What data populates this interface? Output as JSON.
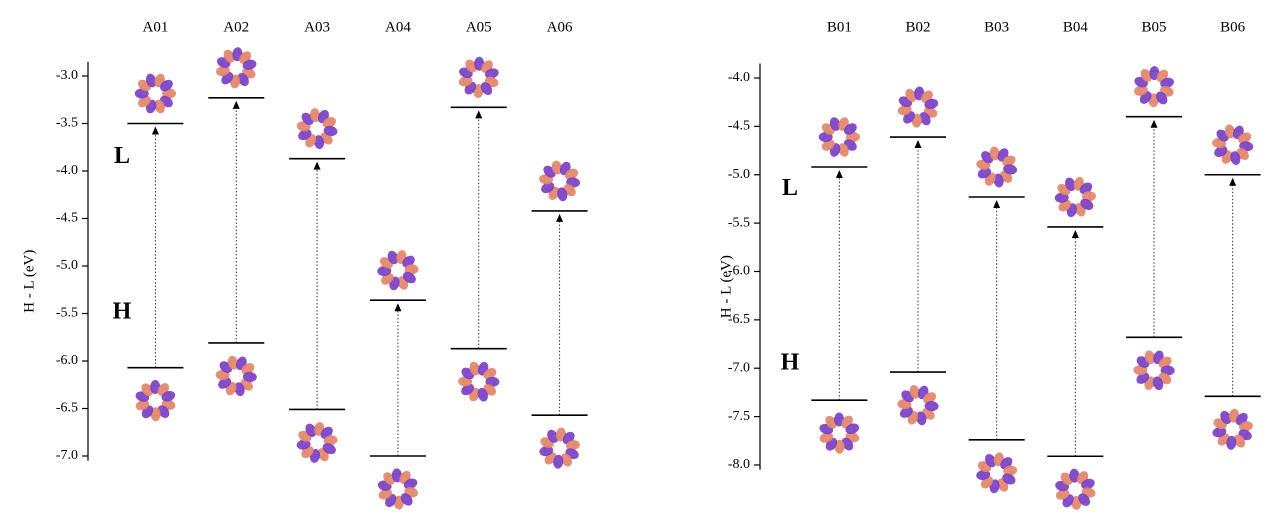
{
  "chart_data": [
    {
      "type": "level",
      "ylabel": "H - L (eV)",
      "categories": [
        "A01",
        "A02",
        "A03",
        "A04",
        "A05",
        "A06"
      ],
      "series": [
        {
          "color": "#000000",
          "values": [
            -3.5,
            -3.23,
            -3.87,
            -5.36,
            -3.33,
            -4.42
          ]
        },
        {
          "color": "#000000",
          "values": [
            -6.07,
            -5.81,
            -6.51,
            -7.0,
            -5.87,
            -6.57
          ]
        }
      ],
      "annotations": [
        "L",
        "H"
      ],
      "ylim": [
        -7.05,
        -2.85
      ],
      "yticks": [
        {
          "value": -3,
          "label": "-3.0"
        },
        -3.5,
        {
          "value": -4,
          "label": "-4.0"
        },
        -4.5,
        {
          "value": -5,
          "label": "-5.0"
        },
        -5.5,
        {
          "value": -6,
          "label": "-6.0"
        },
        -6.5,
        {
          "value": -7,
          "label": "-7.0"
        }
      ]
    },
    {
      "type": "level",
      "ylabel": "H - L (eV)",
      "categories": [
        "B01",
        "B02",
        "B03",
        "B04",
        "B05",
        "B06"
      ],
      "series": [
        {
          "color": "#000000",
          "values": [
            -4.92,
            -4.61,
            -5.23,
            -5.54,
            -4.4,
            -5.0
          ]
        },
        {
          "color": "#000000",
          "values": [
            -7.33,
            -7.04,
            -7.74,
            -7.91,
            -6.68,
            -7.29
          ]
        }
      ],
      "annotations": [
        "L",
        "H"
      ],
      "ylim": [
        -8.05,
        -3.85
      ],
      "yticks": [
        {
          "value": -4,
          "label": "-4.0"
        },
        -4.5,
        {
          "value": -5,
          "label": "-5.0"
        },
        -5.5,
        {
          "value": -6,
          "label": "-6.0"
        },
        -6.5,
        {
          "value": -7,
          "label": "-7.0"
        },
        -7.5,
        {
          "value": -8,
          "label": "-8.0"
        }
      ]
    }
  ]
}
